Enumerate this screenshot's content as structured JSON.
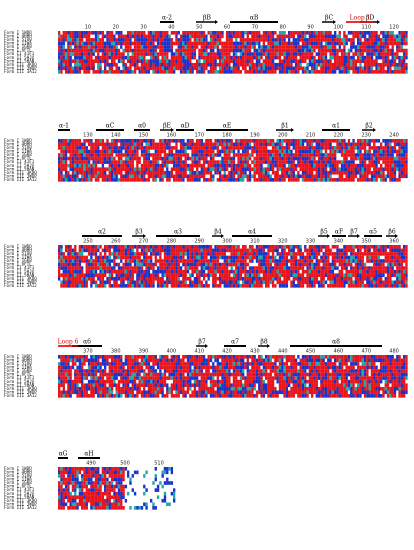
{
  "sequence_labels": [
    "Form I 1WDD",
    "Form I 4HHH",
    "Form I 5IU0",
    "Form I 1IWA",
    "Form I 1GK8",
    "Form I 6FTL",
    "Form II 41F1",
    "Form II 5HJX",
    "Form II 5HAN",
    "Form III 3KDO",
    "Form III 3WQP",
    "Form III 3A12"
  ],
  "colors": {
    "identical": "#e8141c",
    "similar": "#1733c9",
    "weak": "#20a8a8",
    "text_on_color": "#ffffff",
    "loop_label": "#e00000"
  },
  "blocks": [
    {
      "ticks": [
        "10",
        "20",
        "30",
        "40",
        "50",
        "60",
        "70",
        "80",
        "90",
        "100",
        "110",
        "120"
      ],
      "ss": [
        "α-2",
        "βB",
        "αB",
        "βC",
        "βD"
      ],
      "loop": "Loop 1"
    },
    {
      "ticks": [
        "130",
        "140",
        "150",
        "160",
        "170",
        "180",
        "190",
        "200",
        "210",
        "220",
        "230",
        "240"
      ],
      "ss": [
        "α-1",
        "αC",
        "α0",
        "βE",
        "αD",
        "αE",
        "β1",
        "α1",
        "β2"
      ],
      "loop": ""
    },
    {
      "ticks": [
        "250",
        "260",
        "270",
        "280",
        "290",
        "300",
        "310",
        "320",
        "330",
        "340",
        "350",
        "360"
      ],
      "ss": [
        "α2",
        "β3",
        "α3",
        "β4",
        "α4",
        "β5",
        "αF",
        "β7",
        "α5",
        "β6"
      ],
      "loop": ""
    },
    {
      "ticks": [
        "370",
        "380",
        "390",
        "400",
        "410",
        "420",
        "430",
        "440",
        "450",
        "460",
        "470",
        "480"
      ],
      "ss": [
        "α6",
        "β7",
        "α7",
        "β8",
        "α8"
      ],
      "loop": "Loop 6"
    },
    {
      "ticks": [
        "490",
        "500",
        "510"
      ],
      "ss": [
        "αG",
        "αH"
      ],
      "loop": ""
    }
  ]
}
